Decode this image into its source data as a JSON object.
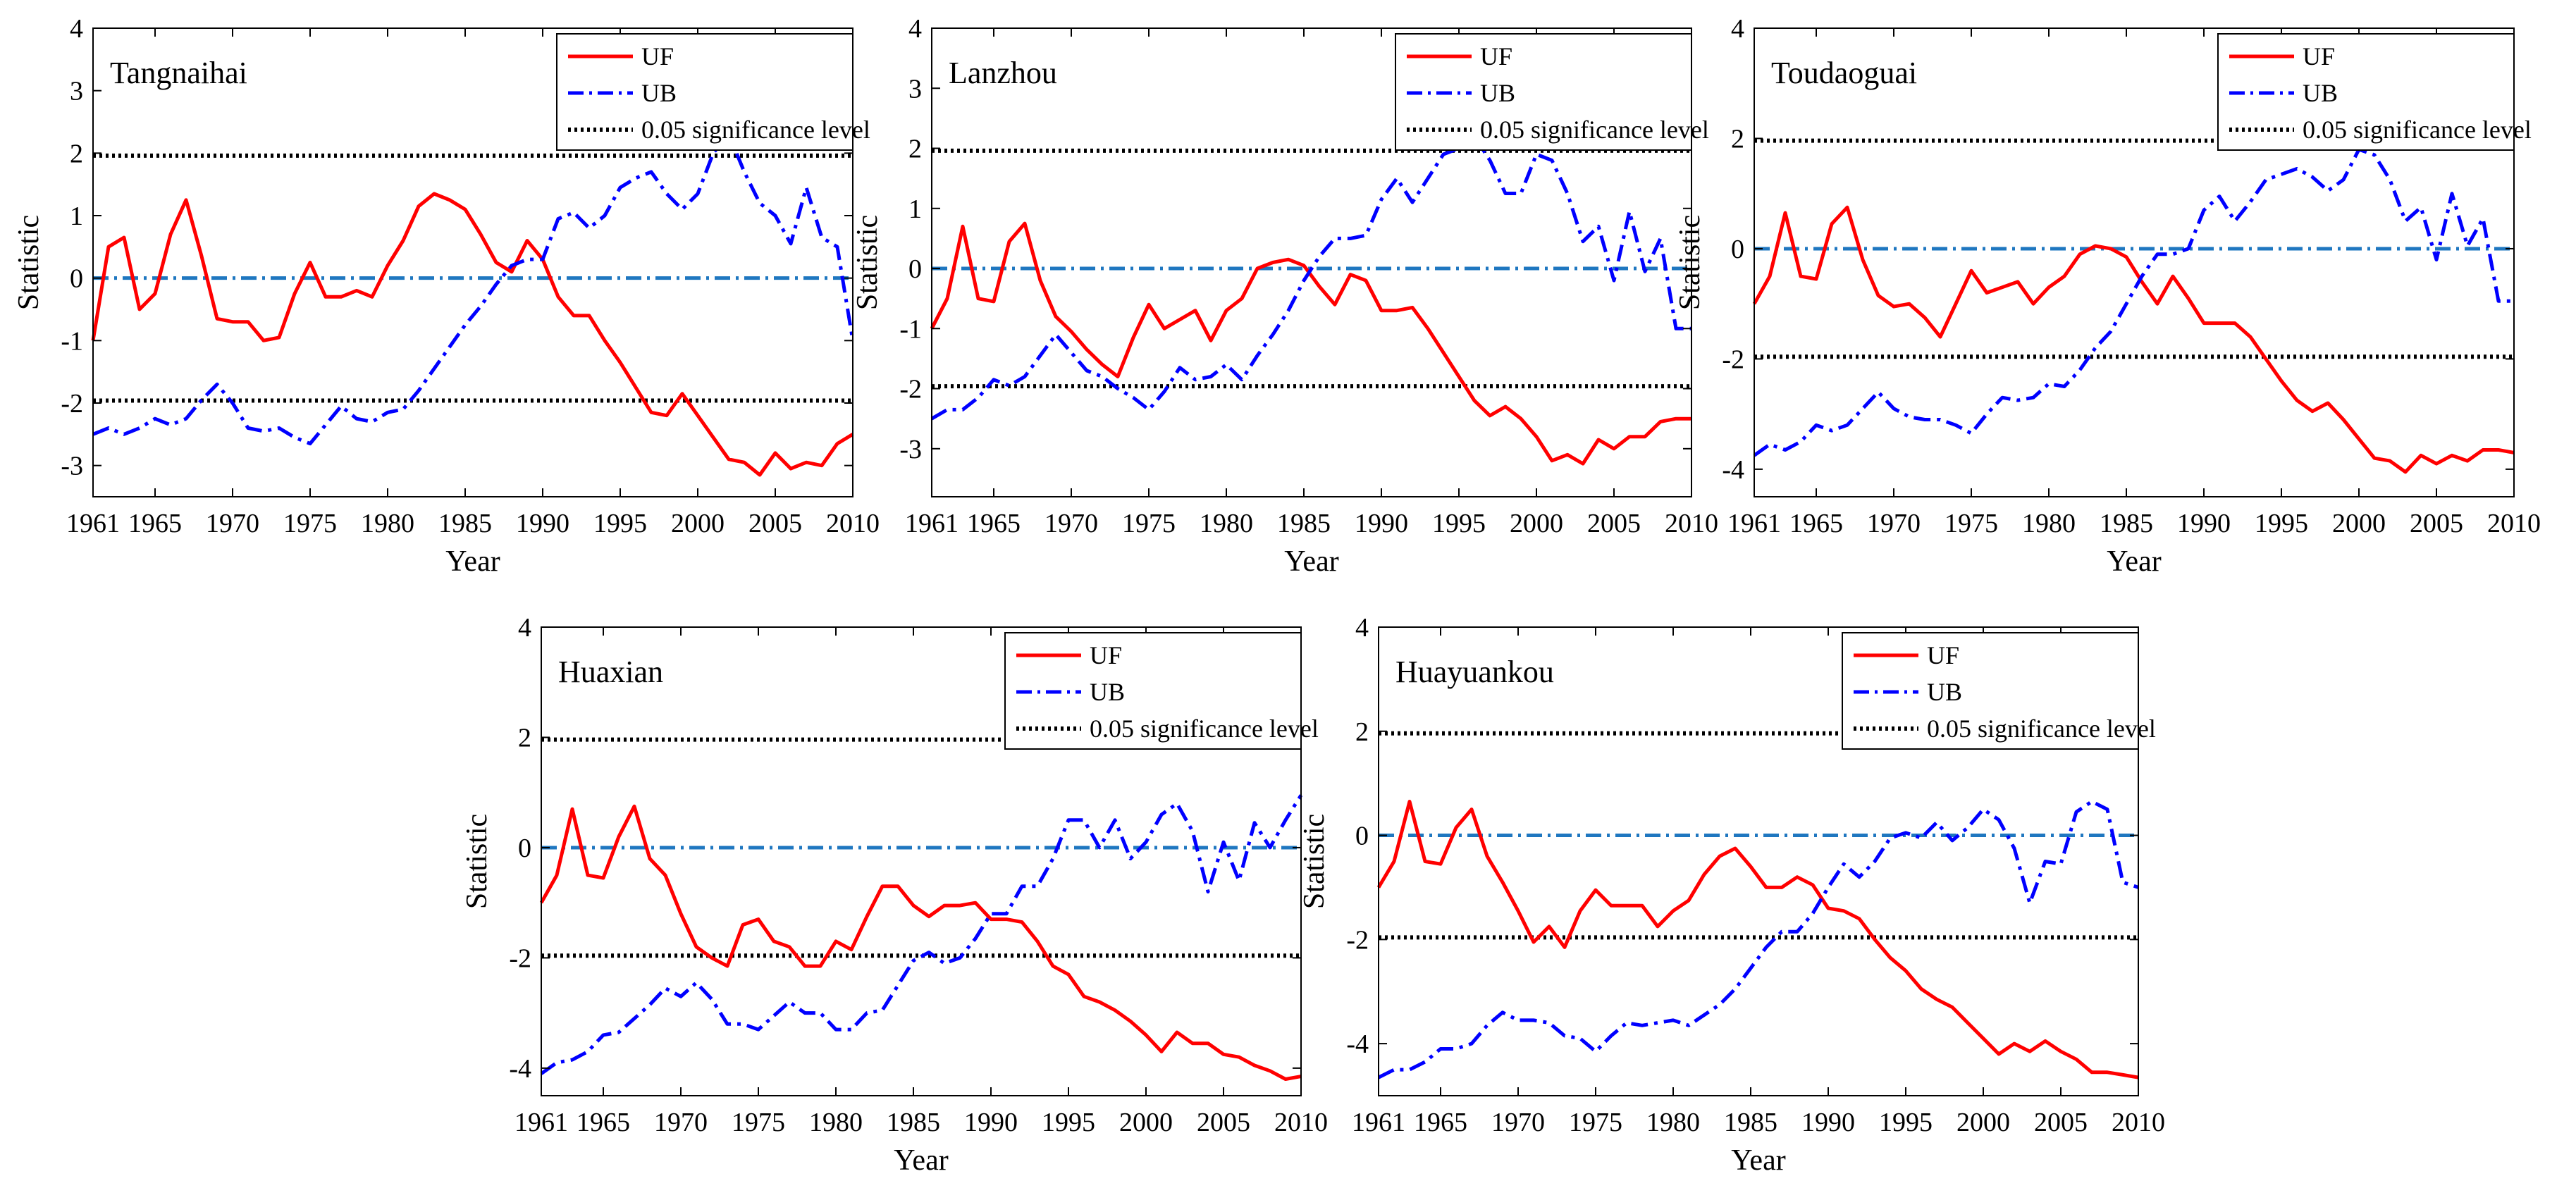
{
  "chart_data": [
    {
      "type": "line",
      "title": "Tangnaihai",
      "xlabel": "Year",
      "ylabel": "Statistic",
      "xlim": [
        1961,
        2010
      ],
      "ylim": [
        -3.5,
        4
      ],
      "xticks": [
        1961,
        1965,
        1970,
        1975,
        1980,
        1985,
        1990,
        1995,
        2000,
        2005,
        2010
      ],
      "yticks": [
        -3,
        -2,
        -1,
        0,
        1,
        2,
        3,
        4
      ],
      "significance": 1.96,
      "legend": [
        "UF",
        "UB",
        "0.05 significance level"
      ],
      "legend_position": "top-right",
      "x_start": 1961,
      "series": [
        {
          "name": "UF",
          "values": [
            -1.0,
            0.5,
            0.65,
            -0.5,
            -0.25,
            0.7,
            1.25,
            0.35,
            -0.65,
            -0.7,
            -0.7,
            -1.0,
            -0.95,
            -0.25,
            0.25,
            -0.3,
            -0.3,
            -0.2,
            -0.3,
            0.2,
            0.6,
            1.15,
            1.35,
            1.25,
            1.1,
            0.7,
            0.25,
            0.1,
            0.6,
            0.3,
            -0.3,
            -0.6,
            -0.6,
            -1.0,
            -1.35,
            -1.75,
            -2.15,
            -2.2,
            -1.85,
            -2.2,
            -2.55,
            -2.9,
            -2.95,
            -3.15,
            -2.8,
            -3.05,
            -2.95,
            -3.0,
            -2.65,
            -2.5
          ]
        },
        {
          "name": "UB",
          "values": [
            -2.5,
            -2.4,
            -2.5,
            -2.4,
            -2.25,
            -2.35,
            -2.25,
            -1.95,
            -1.7,
            -2.0,
            -2.4,
            -2.45,
            -2.4,
            -2.55,
            -2.65,
            -2.35,
            -2.05,
            -2.25,
            -2.3,
            -2.15,
            -2.1,
            -1.8,
            -1.45,
            -1.1,
            -0.75,
            -0.45,
            -0.1,
            0.2,
            0.3,
            0.3,
            0.95,
            1.05,
            0.8,
            1.0,
            1.45,
            1.6,
            1.7,
            1.35,
            1.1,
            1.35,
            2.0,
            2.3,
            1.7,
            1.2,
            1.0,
            0.55,
            1.45,
            0.65,
            0.5,
            -1.0
          ]
        }
      ]
    },
    {
      "type": "line",
      "title": "Lanzhou",
      "xlabel": "Year",
      "ylabel": "Statistic",
      "xlim": [
        1961,
        2010
      ],
      "ylim": [
        -3.8,
        4
      ],
      "xticks": [
        1961,
        1965,
        1970,
        1975,
        1980,
        1985,
        1990,
        1995,
        2000,
        2005,
        2010
      ],
      "yticks": [
        -3,
        -2,
        -1,
        0,
        1,
        2,
        3,
        4
      ],
      "significance": 1.96,
      "legend": [
        "UF",
        "UB",
        "0.05 significance level"
      ],
      "legend_position": "top-right",
      "x_start": 1961,
      "series": [
        {
          "name": "UF",
          "values": [
            -1.0,
            -0.5,
            0.7,
            -0.5,
            -0.55,
            0.45,
            0.75,
            -0.2,
            -0.8,
            -1.05,
            -1.35,
            -1.6,
            -1.8,
            -1.15,
            -0.6,
            -1.0,
            -0.85,
            -0.7,
            -1.2,
            -0.7,
            -0.5,
            0.0,
            0.1,
            0.15,
            0.05,
            -0.3,
            -0.6,
            -0.1,
            -0.2,
            -0.7,
            -0.7,
            -0.65,
            -1.0,
            -1.4,
            -1.8,
            -2.2,
            -2.45,
            -2.3,
            -2.5,
            -2.8,
            -3.2,
            -3.1,
            -3.25,
            -2.85,
            -3.0,
            -2.8,
            -2.8,
            -2.55,
            -2.5,
            -2.5
          ]
        },
        {
          "name": "UB",
          "values": [
            -2.5,
            -2.35,
            -2.35,
            -2.15,
            -1.85,
            -1.95,
            -1.8,
            -1.45,
            -1.1,
            -1.4,
            -1.7,
            -1.8,
            -2.0,
            -2.15,
            -2.35,
            -2.05,
            -1.65,
            -1.85,
            -1.8,
            -1.6,
            -1.85,
            -1.45,
            -1.1,
            -0.7,
            -0.2,
            0.2,
            0.5,
            0.5,
            0.55,
            1.15,
            1.5,
            1.1,
            1.5,
            1.9,
            2.0,
            2.2,
            1.8,
            1.25,
            1.25,
            1.9,
            1.8,
            1.25,
            0.45,
            0.7,
            -0.2,
            0.95,
            -0.05,
            0.5,
            -1.0,
            -1.0
          ]
        }
      ]
    },
    {
      "type": "line",
      "title": "Toudaoguai",
      "xlabel": "Year",
      "ylabel": "Statistic",
      "xlim": [
        1961,
        2010
      ],
      "ylim": [
        -4.5,
        4
      ],
      "xticks": [
        1961,
        1965,
        1970,
        1975,
        1980,
        1985,
        1990,
        1995,
        2000,
        2005,
        2010
      ],
      "yticks": [
        -4,
        -2,
        0,
        2,
        4
      ],
      "significance": 1.96,
      "legend": [
        "UF",
        "UB",
        "0.05 significance level"
      ],
      "legend_position": "top-right",
      "x_start": 1961,
      "series": [
        {
          "name": "UF",
          "values": [
            -1.0,
            -0.5,
            0.65,
            -0.5,
            -0.55,
            0.45,
            0.75,
            -0.2,
            -0.85,
            -1.05,
            -1.0,
            -1.25,
            -1.6,
            -1.0,
            -0.4,
            -0.8,
            -0.7,
            -0.6,
            -1.0,
            -0.7,
            -0.5,
            -0.1,
            0.05,
            0.0,
            -0.15,
            -0.6,
            -1.0,
            -0.5,
            -0.9,
            -1.35,
            -1.35,
            -1.35,
            -1.6,
            -2.0,
            -2.4,
            -2.75,
            -2.95,
            -2.8,
            -3.1,
            -3.45,
            -3.8,
            -3.85,
            -4.05,
            -3.75,
            -3.9,
            -3.75,
            -3.85,
            -3.65,
            -3.65,
            -3.7
          ]
        },
        {
          "name": "UB",
          "values": [
            -3.75,
            -3.55,
            -3.65,
            -3.5,
            -3.2,
            -3.3,
            -3.2,
            -2.9,
            -2.6,
            -2.9,
            -3.05,
            -3.1,
            -3.1,
            -3.2,
            -3.35,
            -3.0,
            -2.7,
            -2.75,
            -2.7,
            -2.45,
            -2.5,
            -2.2,
            -1.8,
            -1.5,
            -1.0,
            -0.5,
            -0.1,
            -0.1,
            0.0,
            0.7,
            0.95,
            0.5,
            0.85,
            1.25,
            1.35,
            1.45,
            1.3,
            1.05,
            1.25,
            1.8,
            1.7,
            1.25,
            0.5,
            0.75,
            -0.2,
            1.0,
            0.05,
            0.55,
            -0.95,
            -0.95
          ]
        }
      ]
    },
    {
      "type": "line",
      "title": "Huaxian",
      "xlabel": "Year",
      "ylabel": "Statistic",
      "xlim": [
        1961,
        2010
      ],
      "ylim": [
        -4.5,
        4
      ],
      "xticks": [
        1961,
        1965,
        1970,
        1975,
        1980,
        1985,
        1990,
        1995,
        2000,
        2005,
        2010
      ],
      "yticks": [
        -4,
        -2,
        0,
        2,
        4
      ],
      "significance": 1.96,
      "legend": [
        "UF",
        "UB",
        "0.05 significance level"
      ],
      "legend_position": "top-right",
      "x_start": 1961,
      "series": [
        {
          "name": "UF",
          "values": [
            -1.0,
            -0.5,
            0.7,
            -0.5,
            -0.55,
            0.2,
            0.75,
            -0.2,
            -0.5,
            -1.2,
            -1.8,
            -2.0,
            -2.15,
            -1.4,
            -1.3,
            -1.7,
            -1.8,
            -2.15,
            -2.15,
            -1.7,
            -1.85,
            -1.25,
            -0.7,
            -0.7,
            -1.05,
            -1.25,
            -1.05,
            -1.05,
            -1.0,
            -1.3,
            -1.3,
            -1.35,
            -1.7,
            -2.15,
            -2.3,
            -2.7,
            -2.8,
            -2.95,
            -3.15,
            -3.4,
            -3.7,
            -3.35,
            -3.55,
            -3.55,
            -3.75,
            -3.8,
            -3.95,
            -4.05,
            -4.2,
            -4.15
          ]
        },
        {
          "name": "UB",
          "values": [
            -4.1,
            -3.9,
            -3.85,
            -3.7,
            -3.4,
            -3.35,
            -3.1,
            -2.85,
            -2.55,
            -2.7,
            -2.45,
            -2.75,
            -3.2,
            -3.2,
            -3.3,
            -3.05,
            -2.8,
            -3.0,
            -3.0,
            -3.3,
            -3.3,
            -3.0,
            -2.95,
            -2.5,
            -2.05,
            -1.9,
            -2.1,
            -2.0,
            -1.65,
            -1.2,
            -1.2,
            -0.7,
            -0.7,
            -0.2,
            0.5,
            0.5,
            0.0,
            0.5,
            -0.2,
            0.1,
            0.6,
            0.8,
            0.3,
            -0.8,
            0.1,
            -0.6,
            0.45,
            0.0,
            0.5,
            0.95
          ]
        }
      ]
    },
    {
      "type": "line",
      "title": "Huayuankou",
      "xlabel": "Year",
      "ylabel": "Statistic",
      "xlim": [
        1961,
        2010
      ],
      "ylim": [
        -5,
        4
      ],
      "xticks": [
        1961,
        1965,
        1970,
        1975,
        1980,
        1985,
        1990,
        1995,
        2000,
        2005,
        2010
      ],
      "yticks": [
        -4,
        -2,
        0,
        2,
        4
      ],
      "significance": 1.96,
      "legend": [
        "UF",
        "UB",
        "0.05 significance level"
      ],
      "legend_position": "top-right",
      "x_start": 1961,
      "series": [
        {
          "name": "UF",
          "values": [
            -1.0,
            -0.5,
            0.65,
            -0.5,
            -0.55,
            0.15,
            0.5,
            -0.4,
            -0.9,
            -1.45,
            -2.05,
            -1.75,
            -2.15,
            -1.45,
            -1.05,
            -1.35,
            -1.35,
            -1.35,
            -1.75,
            -1.45,
            -1.25,
            -0.75,
            -0.4,
            -0.25,
            -0.6,
            -1.0,
            -1.0,
            -0.8,
            -0.95,
            -1.4,
            -1.45,
            -1.6,
            -2.0,
            -2.35,
            -2.6,
            -2.95,
            -3.15,
            -3.3,
            -3.6,
            -3.9,
            -4.2,
            -4.0,
            -4.15,
            -3.95,
            -4.15,
            -4.3,
            -4.55,
            -4.55,
            -4.6,
            -4.65
          ]
        },
        {
          "name": "UB",
          "values": [
            -4.65,
            -4.5,
            -4.5,
            -4.35,
            -4.1,
            -4.1,
            -4.0,
            -3.65,
            -3.4,
            -3.55,
            -3.55,
            -3.6,
            -3.85,
            -3.9,
            -4.15,
            -3.85,
            -3.6,
            -3.65,
            -3.6,
            -3.55,
            -3.65,
            -3.45,
            -3.25,
            -2.95,
            -2.55,
            -2.15,
            -1.85,
            -1.85,
            -1.5,
            -1.0,
            -0.55,
            -0.8,
            -0.5,
            -0.05,
            0.05,
            -0.05,
            0.25,
            -0.1,
            0.15,
            0.5,
            0.3,
            -0.25,
            -1.3,
            -0.5,
            -0.55,
            0.45,
            0.65,
            0.5,
            -0.9,
            -1.0
          ]
        }
      ]
    }
  ],
  "colors": {
    "uf": "#ff0000",
    "ub": "#0000ff",
    "zero_line": "#1f77c0",
    "significance": "#000000",
    "axes": "#000000"
  }
}
